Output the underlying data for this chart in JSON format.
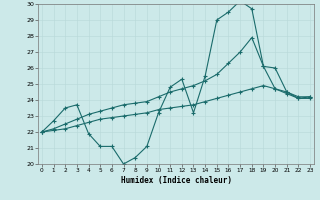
{
  "title": "",
  "xlabel": "Humidex (Indice chaleur)",
  "xlim": [
    0,
    23
  ],
  "ylim": [
    20,
    30
  ],
  "yticks": [
    20,
    21,
    22,
    23,
    24,
    25,
    26,
    27,
    28,
    29,
    30
  ],
  "xticks": [
    0,
    1,
    2,
    3,
    4,
    5,
    6,
    7,
    8,
    9,
    10,
    11,
    12,
    13,
    14,
    15,
    16,
    17,
    18,
    19,
    20,
    21,
    22,
    23
  ],
  "bg_color": "#cce9e9",
  "line_color": "#1a6b6b",
  "line1_x": [
    0,
    1,
    2,
    3,
    4,
    5,
    6,
    7,
    8,
    9,
    10,
    11,
    12,
    13,
    14,
    15,
    16,
    17,
    18,
    19,
    20,
    21,
    22,
    23
  ],
  "line1_y": [
    22.0,
    22.7,
    23.5,
    23.7,
    21.9,
    21.1,
    21.1,
    20.0,
    20.4,
    21.1,
    23.2,
    24.8,
    25.3,
    23.2,
    25.5,
    29.0,
    29.5,
    30.2,
    29.7,
    26.1,
    24.7,
    24.5,
    24.1,
    24.2
  ],
  "line2_x": [
    0,
    1,
    2,
    3,
    4,
    5,
    6,
    7,
    8,
    9,
    10,
    11,
    12,
    13,
    14,
    15,
    16,
    17,
    18,
    19,
    20,
    21,
    22,
    23
  ],
  "line2_y": [
    22.0,
    22.2,
    22.5,
    22.8,
    23.1,
    23.3,
    23.5,
    23.7,
    23.8,
    23.9,
    24.2,
    24.5,
    24.7,
    24.9,
    25.2,
    25.6,
    26.3,
    27.0,
    27.9,
    26.1,
    26.0,
    24.5,
    24.2,
    24.2
  ],
  "line3_x": [
    0,
    1,
    2,
    3,
    4,
    5,
    6,
    7,
    8,
    9,
    10,
    11,
    12,
    13,
    14,
    15,
    16,
    17,
    18,
    19,
    20,
    21,
    22,
    23
  ],
  "line3_y": [
    22.0,
    22.1,
    22.2,
    22.4,
    22.6,
    22.8,
    22.9,
    23.0,
    23.1,
    23.2,
    23.4,
    23.5,
    23.6,
    23.7,
    23.9,
    24.1,
    24.3,
    24.5,
    24.7,
    24.9,
    24.7,
    24.4,
    24.1,
    24.1
  ]
}
